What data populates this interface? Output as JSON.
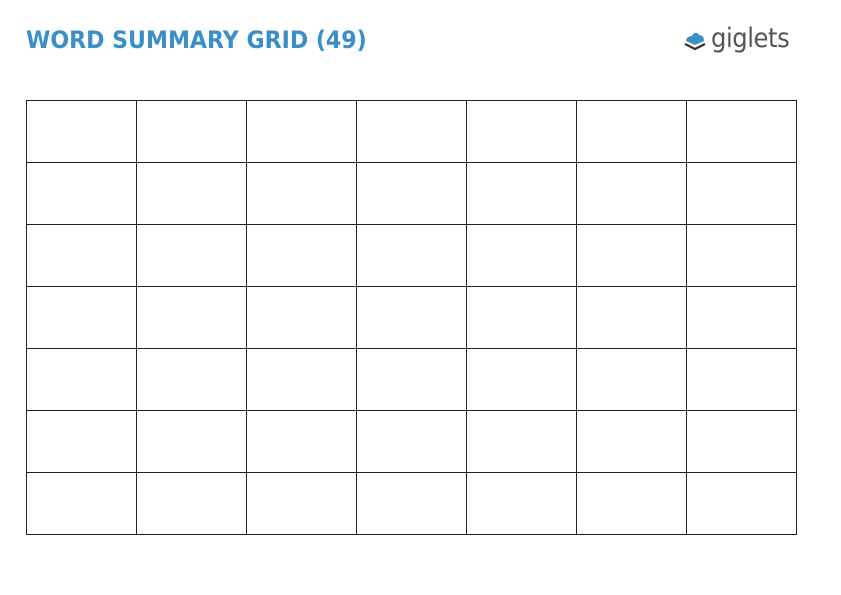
{
  "header": {
    "title": "WORD SUMMARY GRID (49)",
    "logo_text": "giglets",
    "title_color": "#3a8fc8"
  },
  "grid": {
    "rows": 7,
    "columns": 7,
    "cells": [
      [
        "",
        "",
        "",
        "",
        "",
        "",
        ""
      ],
      [
        "",
        "",
        "",
        "",
        "",
        "",
        ""
      ],
      [
        "",
        "",
        "",
        "",
        "",
        "",
        ""
      ],
      [
        "",
        "",
        "",
        "",
        "",
        "",
        ""
      ],
      [
        "",
        "",
        "",
        "",
        "",
        "",
        ""
      ],
      [
        "",
        "",
        "",
        "",
        "",
        "",
        ""
      ],
      [
        "",
        "",
        "",
        "",
        "",
        "",
        ""
      ]
    ]
  }
}
